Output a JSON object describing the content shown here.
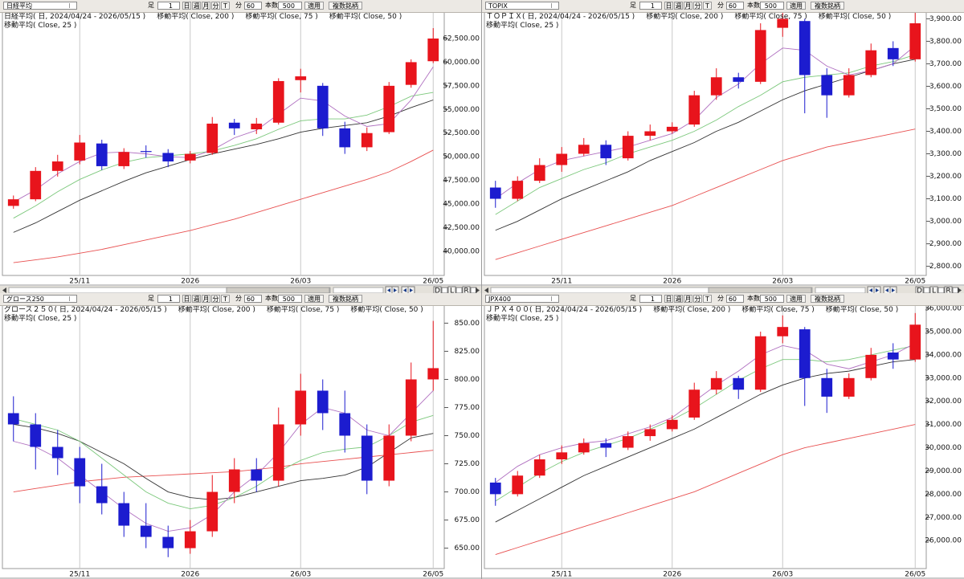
{
  "toolbar": {
    "interval_label": "足",
    "interval_value": 1,
    "period_buttons": [
      "日",
      "週",
      "月",
      "分",
      "T"
    ],
    "minute_label": "分",
    "minute_value": 60,
    "count_label": "本数",
    "count_value": 500,
    "apply": "適用",
    "multi": "複数銘柄",
    "scroll_labels": [
      "D",
      "L",
      "R"
    ]
  },
  "chart_data": [
    {
      "type": "candlestick",
      "symbol": "日経平均",
      "title": "日経平均( 日, 2024/04/24 - 2026/05/15 )",
      "categories": [
        null,
        null,
        null,
        "25/11",
        null,
        null,
        null,
        null,
        "2026",
        null,
        null,
        null,
        null,
        "26/03",
        null,
        null,
        null,
        null,
        null,
        "26/05"
      ],
      "open": [
        44800,
        45500,
        48500,
        49600,
        51400,
        49000,
        50600,
        50400,
        49600,
        50400,
        53600,
        52900,
        53600,
        58100,
        57500,
        53000,
        51000,
        52600,
        57600,
        60100
      ],
      "high": [
        45900,
        48900,
        50200,
        52300,
        51800,
        50900,
        51200,
        50800,
        50600,
        54200,
        54000,
        54100,
        58300,
        59300,
        57800,
        53700,
        53100,
        57900,
        60300,
        63600
      ],
      "low": [
        44500,
        45300,
        47900,
        49200,
        48600,
        48700,
        49900,
        48900,
        49300,
        50200,
        52300,
        52400,
        53400,
        56800,
        52200,
        50300,
        50600,
        52400,
        57300,
        59900
      ],
      "close": [
        45500,
        48500,
        49500,
        51500,
        49000,
        50500,
        50500,
        49500,
        50300,
        53500,
        53000,
        53500,
        58000,
        58500,
        53000,
        51000,
        52500,
        57500,
        60000,
        62500
      ],
      "up_color": "#e8141c",
      "down_color": "#1c1ccf",
      "series": [
        {
          "name": "移動平均( Close, 200 )",
          "color": "#e85050",
          "values": [
            38800,
            39100,
            39400,
            39800,
            40200,
            40700,
            41200,
            41700,
            42200,
            42800,
            43400,
            44100,
            44800,
            45500,
            46200,
            46900,
            47600,
            48400,
            49500,
            50700
          ]
        },
        {
          "name": "移動平均( Close, 75 )",
          "color": "#333333",
          "values": [
            42000,
            43000,
            44200,
            45400,
            46400,
            47400,
            48300,
            49000,
            49700,
            50300,
            50800,
            51300,
            51900,
            52600,
            53000,
            53300,
            53600,
            54300,
            55200,
            56000
          ]
        },
        {
          "name": "移動平均( Close, 50 )",
          "color": "#7cc87c",
          "values": [
            43500,
            44800,
            46300,
            47600,
            48600,
            49400,
            49900,
            50100,
            50300,
            50600,
            51200,
            51900,
            52900,
            53800,
            54000,
            54000,
            54400,
            55300,
            56400,
            56800
          ]
        },
        {
          "name": "移動平均( Close, 25 )",
          "color": "#b070c0",
          "values": [
            45200,
            46500,
            48200,
            49500,
            50400,
            50500,
            50300,
            50000,
            49900,
            50700,
            52000,
            52800,
            54500,
            56200,
            55900,
            54300,
            53200,
            53500,
            56000,
            59500
          ]
        }
      ],
      "ylim": [
        37700,
        65300
      ],
      "yticks": [
        {
          "value": 40000,
          "label": "40,000.00"
        },
        {
          "value": 42500,
          "label": "42,500.00"
        },
        {
          "value": 45000,
          "label": "45,000.00"
        },
        {
          "value": 47500,
          "label": "47,500.00"
        },
        {
          "value": 50000,
          "label": "50,000.00"
        },
        {
          "value": 52500,
          "label": "52,500.00"
        },
        {
          "value": 55000,
          "label": "55,000.00"
        },
        {
          "value": 57500,
          "label": "57,500.00"
        },
        {
          "value": 60000,
          "label": "60,000.00"
        },
        {
          "value": 62500,
          "label": "62,500.00"
        }
      ],
      "grid": true
    },
    {
      "type": "candlestick",
      "symbol": "TOPIX",
      "title": "ＴＯＰＩＸ( 日, 2024/04/24 - 2026/05/15 )",
      "categories": [
        null,
        null,
        null,
        "25/11",
        null,
        null,
        null,
        null,
        "2026",
        null,
        null,
        null,
        null,
        "26/03",
        null,
        null,
        null,
        null,
        null,
        "26/05"
      ],
      "open": [
        3150,
        3100,
        3180,
        3250,
        3300,
        3340,
        3280,
        3380,
        3400,
        3430,
        3560,
        3640,
        3620,
        3860,
        3890,
        3650,
        3560,
        3650,
        3770,
        3720
      ],
      "high": [
        3180,
        3200,
        3280,
        3330,
        3370,
        3360,
        3400,
        3430,
        3440,
        3580,
        3680,
        3660,
        3880,
        3960,
        3900,
        3680,
        3680,
        3790,
        3800,
        3930
      ],
      "low": [
        3060,
        3090,
        3170,
        3220,
        3290,
        3250,
        3270,
        3360,
        3390,
        3420,
        3540,
        3590,
        3610,
        3820,
        3480,
        3460,
        3550,
        3640,
        3690,
        3710
      ],
      "close": [
        3100,
        3180,
        3250,
        3300,
        3340,
        3280,
        3380,
        3400,
        3420,
        3560,
        3640,
        3620,
        3850,
        3900,
        3650,
        3560,
        3650,
        3760,
        3720,
        3880
      ],
      "up_color": "#e8141c",
      "down_color": "#1c1ccf",
      "series": [
        {
          "name": "移動平均( Close, 200 )",
          "color": "#e85050",
          "values": [
            2830,
            2860,
            2890,
            2920,
            2950,
            2980,
            3010,
            3040,
            3070,
            3110,
            3150,
            3190,
            3230,
            3270,
            3300,
            3330,
            3350,
            3370,
            3390,
            3410
          ]
        },
        {
          "name": "移動平均( Close, 75 )",
          "color": "#333333",
          "values": [
            2960,
            3000,
            3050,
            3100,
            3140,
            3180,
            3220,
            3270,
            3310,
            3350,
            3400,
            3440,
            3490,
            3540,
            3580,
            3610,
            3640,
            3670,
            3700,
            3720
          ]
        },
        {
          "name": "移動平均( Close, 50 )",
          "color": "#7cc87c",
          "values": [
            3030,
            3090,
            3150,
            3190,
            3230,
            3260,
            3300,
            3330,
            3360,
            3400,
            3450,
            3510,
            3560,
            3620,
            3640,
            3650,
            3660,
            3690,
            3710,
            3740
          ]
        },
        {
          "name": "移動平均( Close, 25 )",
          "color": "#b070c0",
          "values": [
            3100,
            3170,
            3230,
            3270,
            3290,
            3310,
            3330,
            3360,
            3390,
            3450,
            3550,
            3610,
            3700,
            3770,
            3760,
            3690,
            3650,
            3670,
            3700,
            3780
          ]
        }
      ],
      "ylim": [
        2770,
        3930
      ],
      "yticks": [
        {
          "value": 2800,
          "label": "2,800.00"
        },
        {
          "value": 2900,
          "label": "2,900.00"
        },
        {
          "value": 3000,
          "label": "3,000.00"
        },
        {
          "value": 3100,
          "label": "3,100.00"
        },
        {
          "value": 3200,
          "label": "3,200.00"
        },
        {
          "value": 3300,
          "label": "3,300.00"
        },
        {
          "value": 3400,
          "label": "3,400.00"
        },
        {
          "value": 3500,
          "label": "3,500.00"
        },
        {
          "value": 3600,
          "label": "3,600.00"
        },
        {
          "value": 3700,
          "label": "3,700.00"
        },
        {
          "value": 3800,
          "label": "3,800.00"
        },
        {
          "value": 3900,
          "label": "3,900.00"
        }
      ],
      "grid": true
    },
    {
      "type": "candlestick",
      "symbol": "グロース250",
      "title": "グロース２５０( 日, 2024/04/24 - 2026/05/15 )",
      "categories": [
        null,
        null,
        null,
        "25/11",
        null,
        null,
        null,
        null,
        "2026",
        null,
        null,
        null,
        null,
        "26/03",
        null,
        null,
        null,
        null,
        null,
        "26/05"
      ],
      "open": [
        770,
        760,
        740,
        730,
        705,
        690,
        670,
        660,
        650,
        665,
        700,
        720,
        710,
        760,
        790,
        770,
        750,
        710,
        750,
        800
      ],
      "high": [
        785,
        770,
        755,
        740,
        725,
        700,
        690,
        670,
        675,
        715,
        730,
        730,
        775,
        805,
        800,
        790,
        760,
        760,
        815,
        852
      ],
      "low": [
        745,
        720,
        715,
        690,
        680,
        660,
        650,
        642,
        645,
        660,
        690,
        700,
        705,
        750,
        755,
        735,
        698,
        705,
        745,
        790
      ],
      "close": [
        760,
        740,
        730,
        705,
        690,
        670,
        660,
        650,
        665,
        700,
        720,
        710,
        760,
        790,
        770,
        750,
        710,
        750,
        800,
        810
      ],
      "up_color": "#e8141c",
      "down_color": "#1c1ccf",
      "series": [
        {
          "name": "移動平均( Close, 200 )",
          "color": "#e85050",
          "values": [
            700,
            703,
            706,
            709,
            711,
            713,
            714,
            715,
            716,
            717,
            718,
            720,
            722,
            725,
            727,
            729,
            731,
            733,
            735,
            737
          ]
        },
        {
          "name": "移動平均( Close, 75 )",
          "color": "#333333",
          "values": [
            760,
            757,
            752,
            745,
            735,
            725,
            712,
            700,
            695,
            693,
            695,
            700,
            705,
            710,
            712,
            715,
            722,
            735,
            748,
            752
          ]
        },
        {
          "name": "移動平均( Close, 50 )",
          "color": "#7cc87c",
          "values": [
            765,
            760,
            755,
            745,
            730,
            715,
            700,
            690,
            685,
            688,
            695,
            705,
            718,
            728,
            735,
            738,
            740,
            750,
            762,
            768
          ]
        },
        {
          "name": "移動平均( Close, 25 )",
          "color": "#b070c0",
          "values": [
            745,
            740,
            730,
            715,
            700,
            685,
            672,
            665,
            668,
            680,
            700,
            715,
            735,
            760,
            775,
            770,
            755,
            750,
            770,
            790
          ]
        }
      ],
      "ylim": [
        634,
        866
      ],
      "yticks": [
        {
          "value": 650,
          "label": "650.00"
        },
        {
          "value": 675,
          "label": "675.00"
        },
        {
          "value": 700,
          "label": "700.00"
        },
        {
          "value": 725,
          "label": "725.00"
        },
        {
          "value": 750,
          "label": "750.00"
        },
        {
          "value": 775,
          "label": "775.00"
        },
        {
          "value": 800,
          "label": "800.00"
        },
        {
          "value": 825,
          "label": "825.00"
        },
        {
          "value": 850,
          "label": "850.00"
        }
      ],
      "grid": true
    },
    {
      "type": "candlestick",
      "symbol": "JPX400",
      "title": "ＪＰＸ４００( 日, 2024/04/24 - 2026/05/15 )",
      "categories": [
        null,
        null,
        null,
        "25/11",
        null,
        null,
        null,
        null,
        "2026",
        null,
        null,
        null,
        null,
        "26/03",
        null,
        null,
        null,
        null,
        null,
        "26/05"
      ],
      "open": [
        28500,
        28000,
        28800,
        29500,
        29800,
        30200,
        30000,
        30500,
        30800,
        31300,
        32500,
        33000,
        32500,
        34800,
        35100,
        33000,
        32200,
        33000,
        34100,
        33800
      ],
      "high": [
        28700,
        29000,
        29700,
        30100,
        30400,
        30400,
        30700,
        31000,
        31400,
        32800,
        33300,
        33100,
        35000,
        35700,
        35200,
        33400,
        33200,
        34300,
        34500,
        35800
      ],
      "low": [
        27500,
        27900,
        28700,
        29300,
        29700,
        29600,
        29900,
        30300,
        30700,
        31200,
        32300,
        32100,
        32400,
        34500,
        31800,
        31500,
        32100,
        32900,
        33400,
        33700
      ],
      "close": [
        28000,
        28800,
        29500,
        29800,
        30200,
        30000,
        30500,
        30800,
        31200,
        32500,
        33000,
        32500,
        34800,
        35200,
        33000,
        32200,
        33000,
        34000,
        33800,
        35300
      ],
      "up_color": "#e8141c",
      "down_color": "#1c1ccf",
      "series": [
        {
          "name": "移動平均( Close, 200 )",
          "color": "#e85050",
          "values": [
            25400,
            25700,
            26000,
            26300,
            26600,
            26900,
            27200,
            27500,
            27800,
            28100,
            28500,
            28900,
            29300,
            29700,
            30000,
            30200,
            30400,
            30600,
            30800,
            31000
          ]
        },
        {
          "name": "移動平均( Close, 75 )",
          "color": "#333333",
          "values": [
            26800,
            27300,
            27800,
            28300,
            28800,
            29200,
            29600,
            30000,
            30400,
            30800,
            31300,
            31800,
            32300,
            32700,
            33000,
            33200,
            33300,
            33500,
            33700,
            33800
          ]
        },
        {
          "name": "移動平均( Close, 50 )",
          "color": "#7cc87c",
          "values": [
            27700,
            28300,
            28900,
            29400,
            29800,
            30100,
            30400,
            30800,
            31200,
            31700,
            32300,
            32900,
            33400,
            33800,
            33800,
            33700,
            33800,
            34000,
            34200,
            34400
          ]
        },
        {
          "name": "移動平均( Close, 25 )",
          "color": "#b070c0",
          "values": [
            28500,
            29200,
            29700,
            30000,
            30200,
            30300,
            30600,
            30900,
            31300,
            32000,
            32700,
            33300,
            34000,
            34400,
            34200,
            33600,
            33400,
            33700,
            34000,
            34500
          ]
        }
      ],
      "ylim": [
        24900,
        36140
      ],
      "yticks": [
        {
          "value": 26000,
          "label": "26,000.00"
        },
        {
          "value": 27000,
          "label": "27,000.00"
        },
        {
          "value": 28000,
          "label": "28,000.00"
        },
        {
          "value": 29000,
          "label": "29,000.00"
        },
        {
          "value": 30000,
          "label": "30,000.00"
        },
        {
          "value": 31000,
          "label": "31,000.00"
        },
        {
          "value": 32000,
          "label": "32,000.00"
        },
        {
          "value": 33000,
          "label": "33,000.00"
        },
        {
          "value": 34000,
          "label": "34,000.00"
        },
        {
          "value": 35000,
          "label": "35,000.00"
        },
        {
          "value": 36000,
          "label": "36,000.00"
        }
      ],
      "grid": true
    }
  ]
}
